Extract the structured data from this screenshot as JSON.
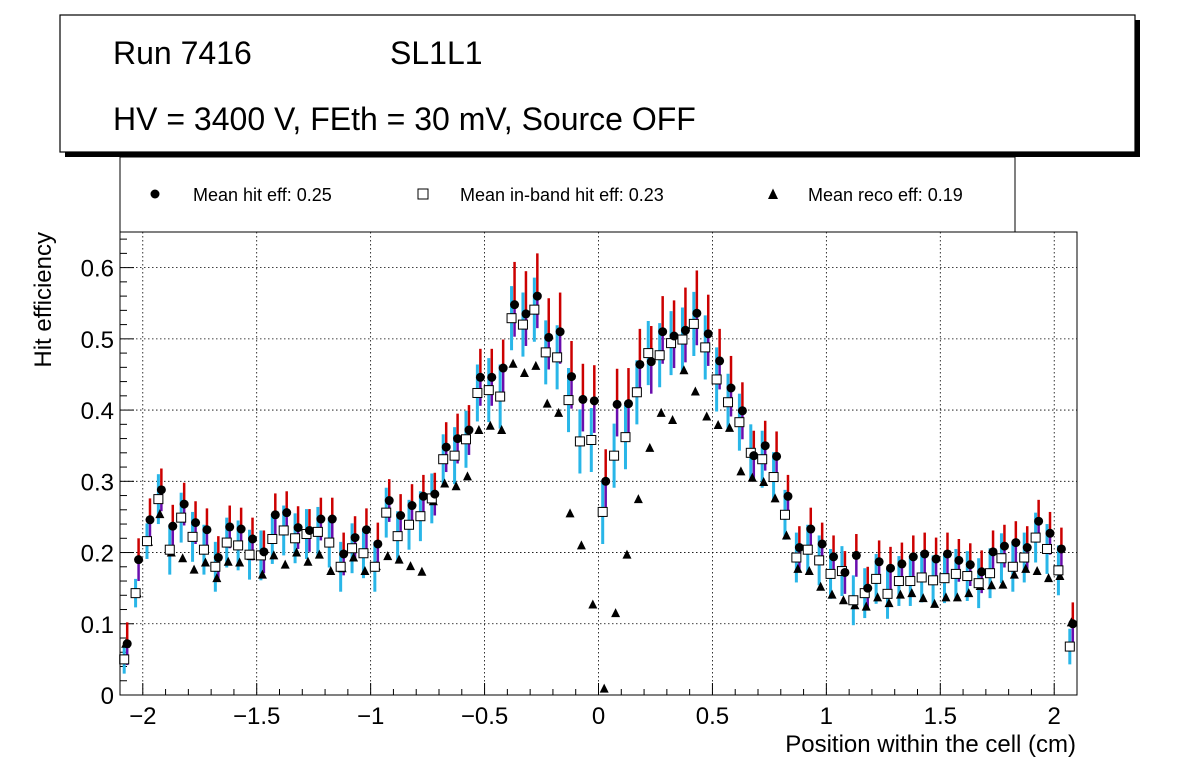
{
  "title_box": {
    "line1_run": "Run 7416",
    "line1_layer": "SL1L1",
    "line2": "HV = 3400 V, FEth = 30 mV, Source OFF"
  },
  "legend": [
    {
      "marker": "circle",
      "label": "Mean hit  eff: 0.25"
    },
    {
      "marker": "open-square",
      "label": "Mean in-band hit eff: 0.23"
    },
    {
      "marker": "triangle",
      "label": "Mean reco eff: 0.19"
    }
  ],
  "colors": {
    "hit_marker": "#000000",
    "hit_error_lower": "#6a0dad",
    "hit_error_upper": "#cc0000",
    "inband_error": "#29b6e8",
    "reco_marker": "#000000"
  },
  "chart_data": {
    "type": "scatter",
    "xlabel": "Position within the cell (cm)",
    "ylabel": "Hit efficiency",
    "xlim": [
      -2.1,
      2.1
    ],
    "ylim": [
      0,
      0.65
    ],
    "grid": true,
    "x_ticks": [
      -2,
      -1.5,
      -1,
      -0.5,
      0,
      0.5,
      1,
      1.5,
      2
    ],
    "x_tick_labels": [
      "−2",
      "−1.5",
      "−1",
      "−0.5",
      "0",
      "0.5",
      "1",
      "1.5",
      "2"
    ],
    "y_ticks": [
      0,
      0.1,
      0.2,
      0.3,
      0.4,
      0.5,
      0.6
    ],
    "y_tick_labels": [
      "0",
      "0.1",
      "0.2",
      "0.3",
      "0.4",
      "0.5",
      "0.6"
    ],
    "x": [
      -2.075,
      -2.025,
      -1.975,
      -1.925,
      -1.875,
      -1.825,
      -1.775,
      -1.725,
      -1.675,
      -1.625,
      -1.575,
      -1.525,
      -1.475,
      -1.425,
      -1.375,
      -1.325,
      -1.275,
      -1.225,
      -1.175,
      -1.125,
      -1.075,
      -1.025,
      -0.975,
      -0.925,
      -0.875,
      -0.825,
      -0.775,
      -0.725,
      -0.675,
      -0.625,
      -0.575,
      -0.525,
      -0.475,
      -0.425,
      -0.375,
      -0.325,
      -0.275,
      -0.225,
      -0.175,
      -0.125,
      -0.075,
      -0.025,
      0.025,
      0.075,
      0.125,
      0.175,
      0.225,
      0.275,
      0.325,
      0.375,
      0.425,
      0.475,
      0.525,
      0.575,
      0.625,
      0.675,
      0.725,
      0.775,
      0.825,
      0.875,
      0.925,
      0.975,
      1.025,
      1.075,
      1.125,
      1.175,
      1.225,
      1.275,
      1.325,
      1.375,
      1.425,
      1.475,
      1.525,
      1.575,
      1.625,
      1.675,
      1.725,
      1.775,
      1.825,
      1.875,
      1.925,
      1.975,
      2.025,
      2.075
    ],
    "series": [
      {
        "name": "Mean hit  eff: 0.25",
        "marker": "circle",
        "values": [
          0.072,
          0.19,
          0.246,
          0.288,
          0.237,
          0.268,
          0.242,
          0.232,
          0.193,
          0.236,
          0.233,
          0.219,
          0.201,
          0.253,
          0.256,
          0.235,
          0.231,
          0.247,
          0.247,
          0.198,
          0.221,
          0.232,
          0.212,
          0.273,
          0.252,
          0.266,
          0.279,
          0.282,
          0.348,
          0.36,
          0.372,
          0.446,
          0.446,
          0.459,
          0.548,
          0.535,
          0.56,
          0.502,
          0.51,
          0.447,
          0.415,
          0.413,
          0.3,
          0.408,
          0.409,
          0.464,
          0.468,
          0.51,
          0.504,
          0.512,
          0.536,
          0.507,
          0.469,
          0.431,
          0.399,
          0.336,
          0.35,
          0.335,
          0.279,
          0.207,
          0.233,
          0.212,
          0.194,
          0.172,
          0.196,
          0.15,
          0.187,
          0.178,
          0.184,
          0.194,
          0.198,
          0.191,
          0.198,
          0.189,
          0.183,
          0.173,
          0.201,
          0.209,
          0.214,
          0.207,
          0.244,
          0.227,
          0.205,
          0.1
        ],
        "err_lo": [
          0.03,
          0.03,
          0.03,
          0.03,
          0.03,
          0.03,
          0.03,
          0.03,
          0.03,
          0.03,
          0.03,
          0.03,
          0.03,
          0.03,
          0.03,
          0.03,
          0.03,
          0.03,
          0.03,
          0.03,
          0.03,
          0.03,
          0.03,
          0.03,
          0.03,
          0.03,
          0.03,
          0.03,
          0.035,
          0.035,
          0.035,
          0.04,
          0.04,
          0.04,
          0.045,
          0.045,
          0.045,
          0.045,
          0.045,
          0.045,
          0.045,
          0.045,
          0.04,
          0.045,
          0.045,
          0.045,
          0.045,
          0.045,
          0.045,
          0.045,
          0.045,
          0.045,
          0.04,
          0.04,
          0.04,
          0.035,
          0.035,
          0.035,
          0.03,
          0.03,
          0.03,
          0.03,
          0.03,
          0.03,
          0.03,
          0.03,
          0.03,
          0.03,
          0.03,
          0.03,
          0.03,
          0.03,
          0.03,
          0.03,
          0.03,
          0.03,
          0.03,
          0.03,
          0.03,
          0.03,
          0.03,
          0.03,
          0.03,
          0.03
        ],
        "err_hi": [
          0.03,
          0.03,
          0.03,
          0.03,
          0.03,
          0.03,
          0.03,
          0.03,
          0.03,
          0.03,
          0.03,
          0.03,
          0.03,
          0.03,
          0.03,
          0.03,
          0.03,
          0.03,
          0.03,
          0.03,
          0.03,
          0.03,
          0.03,
          0.03,
          0.03,
          0.03,
          0.03,
          0.03,
          0.035,
          0.035,
          0.035,
          0.04,
          0.04,
          0.04,
          0.06,
          0.06,
          0.06,
          0.055,
          0.055,
          0.05,
          0.05,
          0.05,
          0.045,
          0.05,
          0.05,
          0.05,
          0.05,
          0.05,
          0.05,
          0.06,
          0.06,
          0.055,
          0.045,
          0.045,
          0.04,
          0.035,
          0.035,
          0.035,
          0.03,
          0.03,
          0.03,
          0.03,
          0.03,
          0.03,
          0.03,
          0.03,
          0.03,
          0.03,
          0.03,
          0.03,
          0.03,
          0.03,
          0.03,
          0.03,
          0.03,
          0.03,
          0.03,
          0.03,
          0.03,
          0.03,
          0.03,
          0.03,
          0.03,
          0.03
        ]
      },
      {
        "name": "Mean in-band hit eff: 0.23",
        "marker": "open-square",
        "values": [
          0.05,
          0.143,
          0.216,
          0.275,
          0.204,
          0.249,
          0.222,
          0.204,
          0.18,
          0.214,
          0.21,
          0.197,
          0.196,
          0.219,
          0.231,
          0.22,
          0.226,
          0.229,
          0.214,
          0.18,
          0.206,
          0.199,
          0.18,
          0.256,
          0.223,
          0.239,
          0.251,
          0.276,
          0.331,
          0.336,
          0.359,
          0.424,
          0.428,
          0.419,
          0.529,
          0.52,
          0.541,
          0.481,
          0.474,
          0.414,
          0.356,
          0.358,
          0.257,
          0.336,
          0.362,
          0.425,
          0.48,
          0.477,
          0.494,
          0.499,
          0.521,
          0.488,
          0.443,
          0.411,
          0.383,
          0.34,
          0.331,
          0.306,
          0.253,
          0.193,
          0.204,
          0.189,
          0.17,
          0.174,
          0.133,
          0.143,
          0.163,
          0.142,
          0.16,
          0.16,
          0.165,
          0.161,
          0.164,
          0.17,
          0.167,
          0.157,
          0.171,
          0.192,
          0.18,
          0.193,
          0.221,
          0.205,
          0.175,
          0.068
        ],
        "err": [
          0.02,
          0.02,
          0.025,
          0.035,
          0.035,
          0.035,
          0.035,
          0.035,
          0.035,
          0.035,
          0.035,
          0.035,
          0.035,
          0.035,
          0.035,
          0.035,
          0.035,
          0.035,
          0.035,
          0.035,
          0.035,
          0.035,
          0.035,
          0.035,
          0.035,
          0.035,
          0.035,
          0.035,
          0.035,
          0.04,
          0.04,
          0.04,
          0.045,
          0.045,
          0.045,
          0.045,
          0.045,
          0.045,
          0.045,
          0.045,
          0.045,
          0.045,
          0.045,
          0.045,
          0.045,
          0.045,
          0.045,
          0.045,
          0.045,
          0.045,
          0.045,
          0.045,
          0.045,
          0.04,
          0.04,
          0.04,
          0.04,
          0.035,
          0.035,
          0.035,
          0.035,
          0.035,
          0.035,
          0.035,
          0.035,
          0.035,
          0.035,
          0.035,
          0.035,
          0.035,
          0.035,
          0.035,
          0.035,
          0.035,
          0.035,
          0.035,
          0.035,
          0.035,
          0.035,
          0.035,
          0.035,
          0.035,
          0.035,
          0.025
        ]
      },
      {
        "name": "Mean reco eff: 0.19",
        "marker": "triangle",
        "values": [
          0.072,
          0.143,
          0.215,
          0.254,
          0.2,
          0.192,
          0.176,
          0.186,
          0.164,
          0.187,
          0.186,
          0.195,
          0.169,
          0.196,
          0.183,
          0.2,
          0.187,
          0.197,
          0.174,
          0.178,
          0.193,
          0.174,
          0.181,
          0.195,
          0.19,
          0.181,
          0.173,
          0.272,
          0.297,
          0.293,
          0.307,
          0.372,
          0.378,
          0.372,
          0.465,
          0.452,
          0.462,
          0.409,
          0.396,
          0.255,
          0.21,
          0.127,
          0.009,
          0.115,
          0.197,
          0.275,
          0.347,
          0.396,
          0.386,
          0.456,
          0.426,
          0.391,
          0.379,
          0.375,
          0.314,
          0.305,
          0.299,
          0.276,
          0.224,
          0.177,
          0.174,
          0.152,
          0.141,
          0.133,
          0.126,
          0.124,
          0.137,
          0.129,
          0.141,
          0.143,
          0.136,
          0.128,
          0.137,
          0.137,
          0.143,
          0.153,
          0.154,
          0.155,
          0.169,
          0.177,
          0.174,
          0.164,
          0.167,
          0.102
        ]
      }
    ]
  }
}
